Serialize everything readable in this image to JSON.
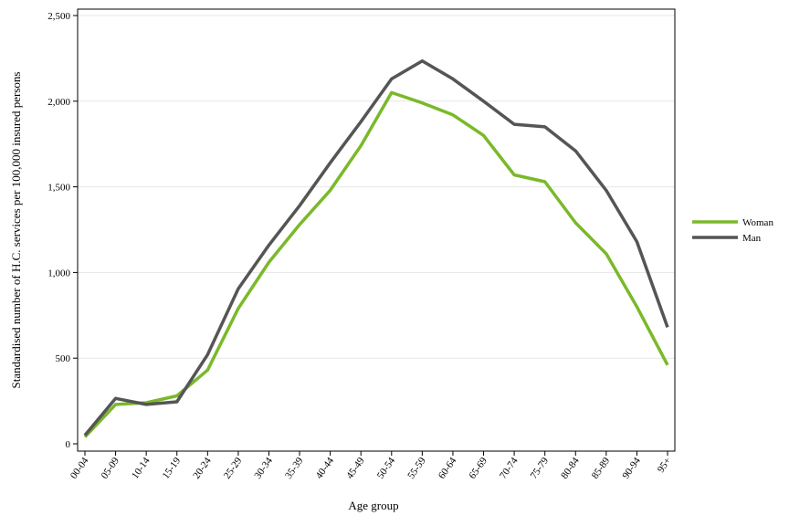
{
  "chart_data": {
    "type": "line",
    "title": "",
    "xlabel": "Age group",
    "ylabel": "Standardised number of H.C. services per 100,000 insured persons",
    "categories": [
      "00-04",
      "05-09",
      "10-14",
      "15-19",
      "20-24",
      "25-29",
      "30-34",
      "35-39",
      "40-44",
      "45-49",
      "50-54",
      "55-59",
      "60-64",
      "65-69",
      "70-74",
      "75-79",
      "80-84",
      "85-89",
      "90-94",
      "95+"
    ],
    "ylim": [
      0,
      2500
    ],
    "yticks": [
      0,
      500,
      1000,
      1500,
      2000,
      2500
    ],
    "ytick_labels": [
      "0",
      "500",
      "1,000",
      "1,500",
      "2,000",
      "2,500"
    ],
    "grid": true,
    "legend_position": "right",
    "series": [
      {
        "name": "Woman",
        "color": "#7ab929",
        "values": [
          40,
          230,
          240,
          280,
          430,
          790,
          1060,
          1280,
          1480,
          1740,
          2050,
          1990,
          1920,
          1800,
          1570,
          1530,
          1290,
          1110,
          800,
          460
        ]
      },
      {
        "name": "Man",
        "color": "#555555",
        "values": [
          50,
          265,
          230,
          245,
          520,
          905,
          1160,
          1390,
          1640,
          1880,
          2130,
          2235,
          2130,
          2000,
          1865,
          1850,
          1710,
          1480,
          1180,
          680
        ]
      }
    ]
  }
}
